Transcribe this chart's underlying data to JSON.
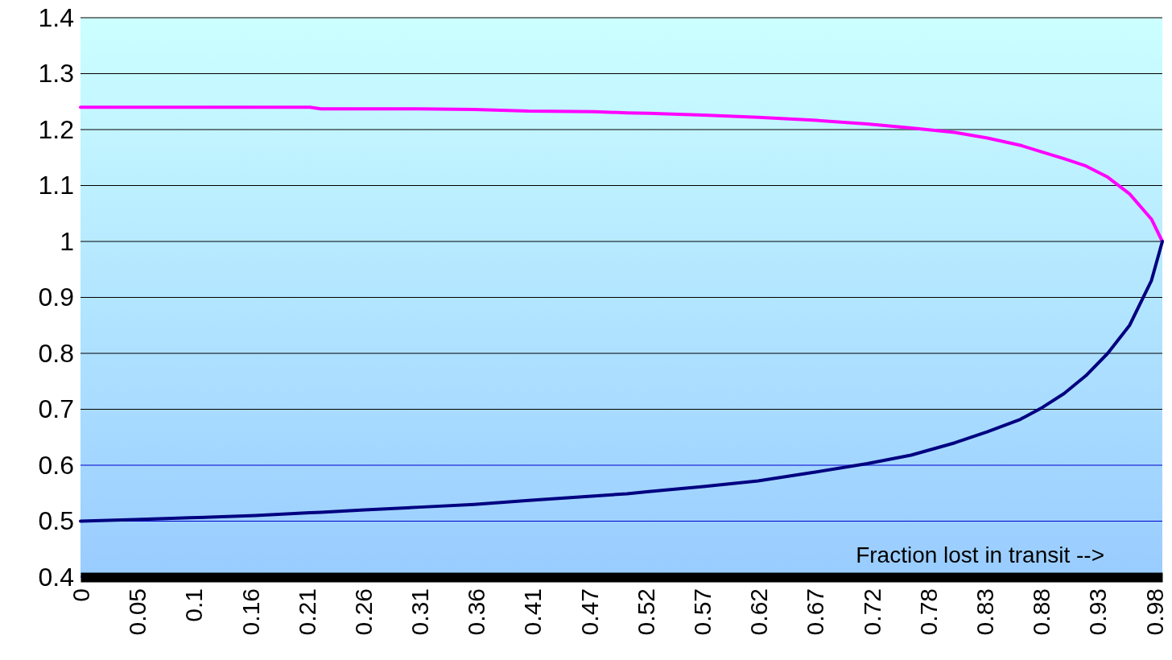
{
  "chart_data": {
    "type": "line",
    "xlabel": "Fraction lost in transit -->",
    "xlim": [
      0,
      0.99
    ],
    "xticks": [
      {
        "value": 0,
        "label": "0"
      },
      {
        "value": 0.0517,
        "label": "0.05"
      },
      {
        "value": 0.1034,
        "label": "0.1"
      },
      {
        "value": 0.1551,
        "label": "0.16"
      },
      {
        "value": 0.2068,
        "label": "0.21"
      },
      {
        "value": 0.2585,
        "label": "0.26"
      },
      {
        "value": 0.3102,
        "label": "0.31"
      },
      {
        "value": 0.3619,
        "label": "0.36"
      },
      {
        "value": 0.4136,
        "label": "0.41"
      },
      {
        "value": 0.4653,
        "label": "0.47"
      },
      {
        "value": 0.517,
        "label": "0.52"
      },
      {
        "value": 0.5687,
        "label": "0.57"
      },
      {
        "value": 0.6204,
        "label": "0.62"
      },
      {
        "value": 0.6721,
        "label": "0.67"
      },
      {
        "value": 0.7238,
        "label": "0.72"
      },
      {
        "value": 0.7755,
        "label": "0.78"
      },
      {
        "value": 0.8272,
        "label": "0.83"
      },
      {
        "value": 0.8789,
        "label": "0.88"
      },
      {
        "value": 0.9306,
        "label": "0.93"
      },
      {
        "value": 0.9823,
        "label": "0.98"
      }
    ],
    "ylim": [
      0.4,
      1.4
    ],
    "yticks": [
      0.4,
      0.5,
      0.6,
      0.7,
      0.8,
      0.9,
      1,
      1.1,
      1.2,
      1.3,
      1.4
    ],
    "grid": "y",
    "marker": "none",
    "line_style": "solid",
    "x": [
      0,
      0.05,
      0.1,
      0.16,
      0.21,
      0.22,
      0.26,
      0.31,
      0.36,
      0.41,
      0.47,
      0.5,
      0.52,
      0.57,
      0.62,
      0.67,
      0.72,
      0.76,
      0.8,
      0.83,
      0.86,
      0.88,
      0.9,
      0.92,
      0.94,
      0.96,
      0.98,
      0.99
    ],
    "series": [
      {
        "color": "#ff00ff",
        "values": [
          1.24,
          1.24,
          1.24,
          1.24,
          1.24,
          1.237,
          1.237,
          1.237,
          1.236,
          1.233,
          1.232,
          1.23,
          1.229,
          1.226,
          1.222,
          1.217,
          1.21,
          1.203,
          1.195,
          1.185,
          1.172,
          1.16,
          1.148,
          1.135,
          1.115,
          1.085,
          1.04,
          1.0
        ]
      },
      {
        "color": "#000080",
        "values": [
          0.5,
          0.503,
          0.506,
          0.51,
          0.515,
          0.516,
          0.52,
          0.525,
          0.53,
          0.537,
          0.545,
          0.549,
          0.553,
          0.562,
          0.572,
          0.587,
          0.603,
          0.618,
          0.64,
          0.66,
          0.682,
          0.703,
          0.728,
          0.76,
          0.8,
          0.85,
          0.93,
          1.0
        ]
      }
    ]
  }
}
